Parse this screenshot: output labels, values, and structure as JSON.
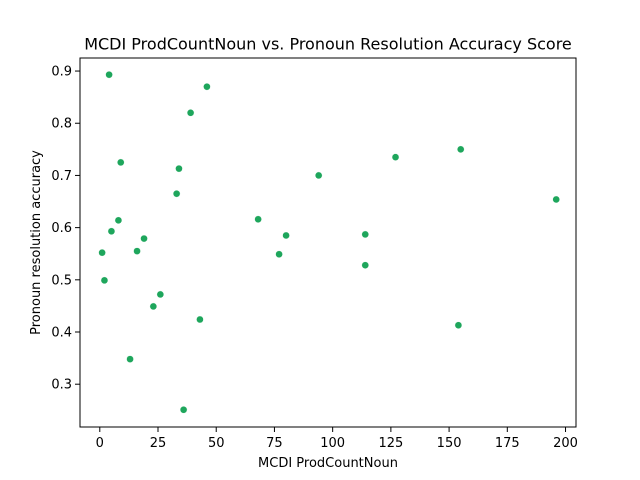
{
  "chart_data": {
    "type": "scatter",
    "title": "MCDI ProdCountNoun vs. Pronoun Resolution Accuracy Score",
    "xlabel": "MCDI ProdCountNoun",
    "ylabel": "Pronoun resolution accuracy",
    "xlim": [
      -8.5,
      204.5
    ],
    "ylim": [
      0.218,
      0.925
    ],
    "x_ticks": [
      0,
      25,
      50,
      75,
      100,
      125,
      150,
      175,
      200
    ],
    "y_ticks": [
      0.3,
      0.4,
      0.5,
      0.6,
      0.7,
      0.8,
      0.9
    ],
    "x_tick_labels": [
      "0",
      "25",
      "50",
      "75",
      "100",
      "125",
      "150",
      "175",
      "200"
    ],
    "y_tick_labels": [
      "0.3",
      "0.4",
      "0.5",
      "0.6",
      "0.7",
      "0.8",
      "0.9"
    ],
    "grid": false,
    "legend": "none",
    "marker_color": "#1ea65c",
    "points": [
      {
        "x": 1,
        "y": 0.552
      },
      {
        "x": 2,
        "y": 0.499
      },
      {
        "x": 4,
        "y": 0.893
      },
      {
        "x": 5,
        "y": 0.593
      },
      {
        "x": 8,
        "y": 0.614
      },
      {
        "x": 9,
        "y": 0.725
      },
      {
        "x": 13,
        "y": 0.348
      },
      {
        "x": 16,
        "y": 0.555
      },
      {
        "x": 19,
        "y": 0.579
      },
      {
        "x": 23,
        "y": 0.449
      },
      {
        "x": 26,
        "y": 0.472
      },
      {
        "x": 33,
        "y": 0.665
      },
      {
        "x": 34,
        "y": 0.713
      },
      {
        "x": 36,
        "y": 0.251
      },
      {
        "x": 39,
        "y": 0.82
      },
      {
        "x": 43,
        "y": 0.424
      },
      {
        "x": 46,
        "y": 0.87
      },
      {
        "x": 68,
        "y": 0.616
      },
      {
        "x": 77,
        "y": 0.549
      },
      {
        "x": 80,
        "y": 0.585
      },
      {
        "x": 94,
        "y": 0.7
      },
      {
        "x": 114,
        "y": 0.587
      },
      {
        "x": 114,
        "y": 0.528
      },
      {
        "x": 127,
        "y": 0.735
      },
      {
        "x": 154,
        "y": 0.413
      },
      {
        "x": 155,
        "y": 0.75
      },
      {
        "x": 196,
        "y": 0.654
      }
    ]
  }
}
